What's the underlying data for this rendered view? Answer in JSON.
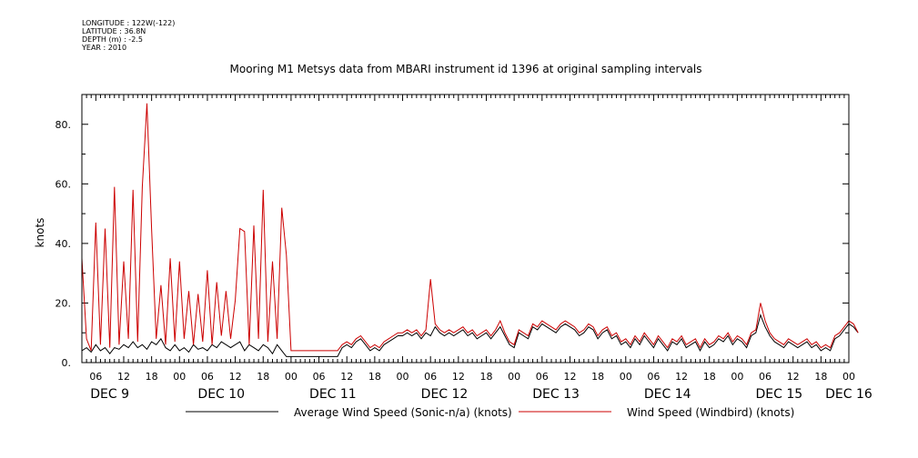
{
  "meta": {
    "longitude": "LONGITUDE : 122W(-122)",
    "latitude": "LATITUDE : 36.8N",
    "depth": "DEPTH (m) : -2.5",
    "year": "YEAR : 2010"
  },
  "chart_data": {
    "type": "line",
    "title": "Mooring M1 Metsys data from MBARI instrument id 1396 at original sampling intervals",
    "xlabel": "",
    "ylabel": "knots",
    "xlim": [
      3,
      168
    ],
    "ylim": [
      0,
      90
    ],
    "x_unit": "hours since DEC 9 00:00, 2010",
    "yticks": [
      {
        "v": 0,
        "label": "0."
      },
      {
        "v": 20,
        "label": "20."
      },
      {
        "v": 40,
        "label": "40."
      },
      {
        "v": 60,
        "label": "60."
      },
      {
        "v": 80,
        "label": "80."
      }
    ],
    "xticks": [
      {
        "h": 6,
        "label": "06"
      },
      {
        "h": 12,
        "label": "12"
      },
      {
        "h": 18,
        "label": "18"
      },
      {
        "h": 24,
        "label": "00"
      },
      {
        "h": 30,
        "label": "06"
      },
      {
        "h": 36,
        "label": "12"
      },
      {
        "h": 42,
        "label": "18"
      },
      {
        "h": 48,
        "label": "00"
      },
      {
        "h": 54,
        "label": "06"
      },
      {
        "h": 60,
        "label": "12"
      },
      {
        "h": 66,
        "label": "18"
      },
      {
        "h": 72,
        "label": "00"
      },
      {
        "h": 78,
        "label": "06"
      },
      {
        "h": 84,
        "label": "12"
      },
      {
        "h": 90,
        "label": "18"
      },
      {
        "h": 96,
        "label": "00"
      },
      {
        "h": 102,
        "label": "06"
      },
      {
        "h": 108,
        "label": "12"
      },
      {
        "h": 114,
        "label": "18"
      },
      {
        "h": 120,
        "label": "00"
      },
      {
        "h": 126,
        "label": "06"
      },
      {
        "h": 132,
        "label": "12"
      },
      {
        "h": 138,
        "label": "18"
      },
      {
        "h": 144,
        "label": "00"
      },
      {
        "h": 150,
        "label": "06"
      },
      {
        "h": 156,
        "label": "12"
      },
      {
        "h": 162,
        "label": "18"
      },
      {
        "h": 168,
        "label": "00"
      }
    ],
    "day_labels": [
      {
        "h": 9,
        "label": "DEC  9"
      },
      {
        "h": 33,
        "label": "DEC 10"
      },
      {
        "h": 57,
        "label": "DEC 11"
      },
      {
        "h": 81,
        "label": "DEC 12"
      },
      {
        "h": 105,
        "label": "DEC 13"
      },
      {
        "h": 129,
        "label": "DEC 14"
      },
      {
        "h": 153,
        "label": "DEC 15"
      },
      {
        "h": 168,
        "label": "DEC 16"
      }
    ],
    "series": [
      {
        "name": "Average Wind Speed (Sonic-n/a) (knots)",
        "color": "#000000",
        "x": [
          3,
          4,
          5,
          6,
          7,
          8,
          9,
          10,
          11,
          12,
          13,
          14,
          15,
          16,
          17,
          18,
          19,
          20,
          21,
          22,
          23,
          24,
          25,
          26,
          27,
          28,
          29,
          30,
          31,
          32,
          33,
          34,
          35,
          36,
          37,
          38,
          39,
          40,
          41,
          42,
          43,
          44,
          45,
          46,
          47,
          48,
          49,
          50,
          51,
          52,
          53,
          54,
          55,
          56,
          57,
          58,
          59,
          60,
          61,
          62,
          63,
          64,
          65,
          66,
          67,
          68,
          69,
          70,
          71,
          72,
          73,
          74,
          75,
          76,
          77,
          78,
          79,
          80,
          81,
          82,
          83,
          84,
          85,
          86,
          87,
          88,
          89,
          90,
          91,
          92,
          93,
          94,
          95,
          96,
          97,
          98,
          99,
          100,
          101,
          102,
          103,
          104,
          105,
          106,
          107,
          108,
          109,
          110,
          111,
          112,
          113,
          114,
          115,
          116,
          117,
          118,
          119,
          120,
          121,
          122,
          123,
          124,
          125,
          126,
          127,
          128,
          129,
          130,
          131,
          132,
          133,
          134,
          135,
          136,
          137,
          138,
          139,
          140,
          141,
          142,
          143,
          144,
          145,
          146,
          147,
          148,
          149,
          150,
          151,
          152,
          153,
          154,
          155,
          156,
          157,
          158,
          159,
          160,
          161,
          162,
          163,
          164,
          165,
          166,
          167,
          168,
          169,
          170
        ],
        "values": [
          4,
          5,
          3.5,
          6,
          4,
          5,
          3,
          5,
          4.5,
          6,
          5,
          7,
          5,
          6,
          4.5,
          7,
          6,
          8,
          5,
          4,
          6,
          4,
          5,
          3.5,
          6,
          4.5,
          5,
          4,
          6,
          5,
          7,
          6,
          5,
          6,
          7,
          4,
          6,
          5,
          4,
          6,
          5,
          3,
          6,
          4,
          2,
          2,
          2,
          2,
          2,
          2,
          2,
          2,
          2,
          2,
          2,
          2,
          5,
          6,
          5,
          7,
          8,
          6,
          4,
          5,
          4,
          6,
          7,
          8,
          9,
          9,
          10,
          9,
          10,
          8,
          10,
          9,
          12,
          10,
          9,
          10,
          9,
          10,
          11,
          9,
          10,
          8,
          9,
          10,
          8,
          10,
          12,
          9,
          6,
          5,
          10,
          9,
          8,
          12,
          11,
          13,
          12,
          11,
          10,
          12,
          13,
          12,
          11,
          9,
          10,
          12,
          11,
          8,
          10,
          11,
          8,
          9,
          6,
          7,
          5,
          8,
          6,
          9,
          7,
          5,
          8,
          6,
          4,
          7,
          6,
          8,
          5,
          6,
          7,
          4,
          7,
          5,
          6,
          8,
          7,
          9,
          6,
          8,
          7,
          5,
          9,
          10,
          16,
          12,
          9,
          7,
          6,
          5,
          7,
          6,
          5,
          6,
          7,
          5,
          6,
          4,
          5,
          4,
          8,
          9,
          11,
          13,
          12,
          10
        ]
      },
      {
        "name": "Wind Speed (Windbird) (knots)",
        "color": "#cc0000",
        "x": [
          3,
          4,
          5,
          6,
          7,
          8,
          9,
          10,
          11,
          12,
          13,
          14,
          15,
          16,
          17,
          18,
          19,
          20,
          21,
          22,
          23,
          24,
          25,
          26,
          27,
          28,
          29,
          30,
          31,
          32,
          33,
          34,
          35,
          36,
          37,
          38,
          39,
          40,
          41,
          42,
          43,
          44,
          45,
          46,
          47,
          48,
          49,
          50,
          51,
          52,
          53,
          54,
          55,
          56,
          57,
          58,
          59,
          60,
          61,
          62,
          63,
          64,
          65,
          66,
          67,
          68,
          69,
          70,
          71,
          72,
          73,
          74,
          75,
          76,
          77,
          78,
          79,
          80,
          81,
          82,
          83,
          84,
          85,
          86,
          87,
          88,
          89,
          90,
          91,
          92,
          93,
          94,
          95,
          96,
          97,
          98,
          99,
          100,
          101,
          102,
          103,
          104,
          105,
          106,
          107,
          108,
          109,
          110,
          111,
          112,
          113,
          114,
          115,
          116,
          117,
          118,
          119,
          120,
          121,
          122,
          123,
          124,
          125,
          126,
          127,
          128,
          129,
          130,
          131,
          132,
          133,
          134,
          135,
          136,
          137,
          138,
          139,
          140,
          141,
          142,
          143,
          144,
          145,
          146,
          147,
          148,
          149,
          150,
          151,
          152,
          153,
          154,
          155,
          156,
          157,
          158,
          159,
          160,
          161,
          162,
          163,
          164,
          165,
          166,
          167,
          168,
          169,
          170
        ],
        "values": [
          35,
          8,
          4,
          47,
          6,
          45,
          5,
          59,
          6,
          34,
          8,
          58,
          7,
          59,
          87,
          45,
          8,
          26,
          6,
          35,
          7,
          34,
          8,
          24,
          6,
          23,
          7,
          31,
          6,
          27,
          9,
          24,
          8,
          21,
          45,
          44,
          6,
          46,
          8,
          58,
          7,
          34,
          8,
          52,
          36,
          4,
          4,
          4,
          4,
          4,
          4,
          4,
          4,
          4,
          4,
          4,
          6,
          7,
          6,
          8,
          9,
          7,
          5,
          6,
          5,
          7,
          8,
          9,
          10,
          10,
          11,
          10,
          11,
          9,
          11,
          28,
          13,
          11,
          10,
          11,
          10,
          11,
          12,
          10,
          11,
          9,
          10,
          11,
          9,
          11,
          14,
          10,
          7,
          6,
          11,
          10,
          9,
          13,
          12,
          14,
          13,
          12,
          11,
          13,
          14,
          13,
          12,
          10,
          11,
          13,
          12,
          9,
          11,
          12,
          9,
          10,
          7,
          8,
          6,
          9,
          7,
          10,
          8,
          6,
          9,
          7,
          5,
          8,
          7,
          9,
          6,
          7,
          8,
          5,
          8,
          6,
          7,
          9,
          8,
          10,
          7,
          9,
          8,
          6,
          10,
          11,
          20,
          14,
          10,
          8,
          7,
          6,
          8,
          7,
          6,
          7,
          8,
          6,
          7,
          5,
          6,
          5,
          9,
          10,
          12,
          14,
          13,
          10
        ]
      }
    ]
  }
}
